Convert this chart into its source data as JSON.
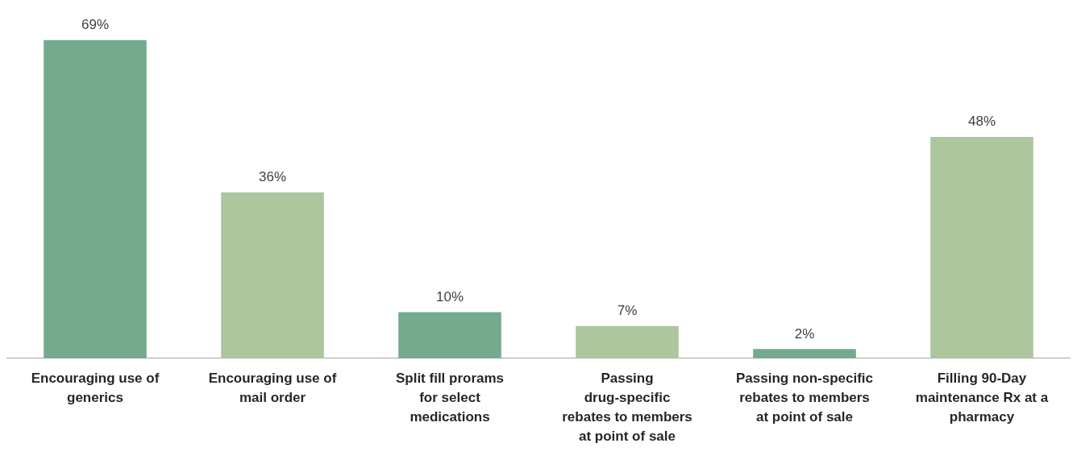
{
  "chart_data": {
    "type": "bar",
    "categories": [
      "Encouraging use of generics",
      "Encouraging use of mail order",
      "Split fill prorams for select medications",
      "Passing drug-specific rebates to members at point of sale",
      "Passing non-specific rebates to members at point of sale",
      "Filling 90-Day maintenance Rx at a pharmacy"
    ],
    "values": [
      69,
      36,
      10,
      7,
      2,
      48
    ],
    "colors": [
      "#74aa8e",
      "#acc79d",
      "#74aa8e",
      "#acc79d",
      "#74aa8e",
      "#acc79d"
    ],
    "value_labels": [
      "69%",
      "36%",
      "10%",
      "7%",
      "2%",
      "48%"
    ],
    "legend": false,
    "grid": false
  }
}
